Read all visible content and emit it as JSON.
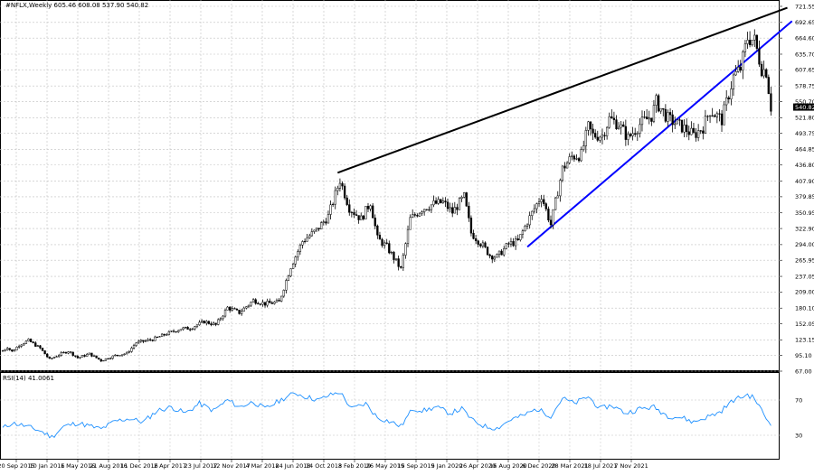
{
  "chart_data": [
    {
      "type": "candlestick",
      "title": "#NFLX,Weekly  605.46 608.08 537.90 540.82",
      "ylabel_ticks": [
        "721.55",
        "692.65",
        "664.60",
        "635.70",
        "607.65",
        "578.75",
        "550.70",
        "521.80",
        "493.75",
        "464.85",
        "436.80",
        "407.90",
        "379.85",
        "350.95",
        "322.90",
        "294.00",
        "265.95",
        "237.05",
        "209.00",
        "180.10",
        "152.05",
        "123.15",
        "95.10",
        "67.00"
      ],
      "ylim": [
        67.0,
        721.55
      ],
      "last_price": "540.82",
      "x_ticks": [
        "20 Sep 2015",
        "10 Jan 2016",
        "1 May 2016",
        "21 Aug 2016",
        "11 Dec 2016",
        "2 Apr 2017",
        "23 Jul 2017",
        "12 Nov 2017",
        "4 Mar 2018",
        "24 Jun 2018",
        "14 Oct 2018",
        "3 Feb 2019",
        "26 May 2019",
        "15 Sep 2019",
        "5 Jan 2020",
        "26 Apr 2020",
        "16 Aug 2020",
        "6 Dec 2020",
        "28 Mar 2021",
        "18 Jul 2021",
        "7 Nov 2021"
      ],
      "x_range": [
        "2015-09-20",
        "2022-01-09"
      ],
      "grid": true,
      "series": [
        {
          "name": "",
          "color": "#000000",
          "points": [
            [
              "2015-09-20",
              103.5
            ],
            [
              "2015-10-04",
              110.0
            ],
            [
              "2015-10-18",
              102.0
            ],
            [
              "2015-11-08",
              114.0
            ],
            [
              "2015-12-06",
              122.0
            ],
            [
              "2016-01-10",
              108.0
            ],
            [
              "2016-02-07",
              88.0
            ],
            [
              "2016-03-06",
              96.5
            ],
            [
              "2016-04-03",
              103.0
            ],
            [
              "2016-05-01",
              91.0
            ],
            [
              "2016-06-05",
              98.0
            ],
            [
              "2016-07-10",
              86.0
            ],
            [
              "2016-08-21",
              95.0
            ],
            [
              "2016-09-25",
              99.0
            ],
            [
              "2016-10-23",
              118.0
            ],
            [
              "2016-12-11",
              124.0
            ],
            [
              "2017-01-22",
              134.0
            ],
            [
              "2017-03-05",
              143.0
            ],
            [
              "2017-04-02",
              144.0
            ],
            [
              "2017-05-14",
              156.0
            ],
            [
              "2017-06-18",
              150.0
            ],
            [
              "2017-07-23",
              181.0
            ],
            [
              "2017-08-27",
              172.0
            ],
            [
              "2017-10-08",
              194.0
            ],
            [
              "2017-11-12",
              188.0
            ],
            [
              "2017-12-24",
              191.0
            ],
            [
              "2018-01-28",
              255.0
            ],
            [
              "2018-03-04",
              300.0
            ],
            [
              "2018-04-15",
              320.0
            ],
            [
              "2018-05-20",
              345.0
            ],
            [
              "2018-06-24",
              410.0
            ],
            [
              "2018-07-22",
              360.0
            ],
            [
              "2018-08-26",
              340.0
            ],
            [
              "2018-09-23",
              370.0
            ],
            [
              "2018-10-14",
              305.0
            ],
            [
              "2018-11-11",
              290.0
            ],
            [
              "2018-12-23",
              250.0
            ],
            [
              "2019-01-20",
              340.0
            ],
            [
              "2019-02-24",
              358.0
            ],
            [
              "2019-03-31",
              367.0
            ],
            [
              "2019-04-28",
              370.0
            ],
            [
              "2019-05-26",
              352.0
            ],
            [
              "2019-06-30",
              380.0
            ],
            [
              "2019-07-21",
              315.0
            ],
            [
              "2019-08-25",
              292.0
            ],
            [
              "2019-09-15",
              275.0
            ],
            [
              "2019-10-06",
              272.0
            ],
            [
              "2019-11-10",
              295.0
            ],
            [
              "2019-12-08",
              300.0
            ],
            [
              "2020-01-05",
              335.0
            ],
            [
              "2020-02-16",
              382.0
            ],
            [
              "2020-03-15",
              330.0
            ],
            [
              "2020-04-19",
              430.0
            ],
            [
              "2020-05-17",
              452.0
            ],
            [
              "2020-06-14",
              455.0
            ],
            [
              "2020-07-05",
              505.0
            ],
            [
              "2020-07-19",
              490.0
            ],
            [
              "2020-08-16",
              490.0
            ],
            [
              "2020-09-06",
              520.0
            ],
            [
              "2020-10-04",
              510.0
            ],
            [
              "2020-11-01",
              485.0
            ],
            [
              "2020-12-06",
              510.0
            ],
            [
              "2021-01-10",
              525.0
            ],
            [
              "2021-01-24",
              550.0
            ],
            [
              "2021-02-28",
              520.0
            ],
            [
              "2021-03-28",
              510.0
            ],
            [
              "2021-04-25",
              500.0
            ],
            [
              "2021-05-16",
              490.0
            ],
            [
              "2021-06-13",
              505.0
            ],
            [
              "2021-07-04",
              535.0
            ],
            [
              "2021-08-08",
              518.0
            ],
            [
              "2021-09-12",
              595.0
            ],
            [
              "2021-10-03",
              610.0
            ],
            [
              "2021-10-24",
              665.0
            ],
            [
              "2021-11-14",
              660.0
            ],
            [
              "2021-12-05",
              610.0
            ],
            [
              "2021-12-19",
              605.0
            ],
            [
              "2022-01-02",
              540.82
            ]
          ]
        }
      ],
      "trendlines": [
        {
          "color": "#000000",
          "from": [
            "2018-06-17",
            423.0
          ],
          "to": [
            "2022-02-20",
            719.0
          ]
        },
        {
          "color": "#0000ff",
          "from": [
            "2020-01-05",
            290.0
          ],
          "to": [
            "2022-03-06",
            695.0
          ]
        }
      ]
    },
    {
      "type": "line",
      "title": "RSI(14) 41.0061",
      "ylabel_ticks": [
        "70",
        "30"
      ],
      "ylim": [
        0,
        100
      ],
      "color": "#1e90ff",
      "series": [
        {
          "name": "",
          "points": [
            [
              "2015-09-20",
              38
            ],
            [
              "2015-10-18",
              44
            ],
            [
              "2015-11-22",
              41
            ],
            [
              "2016-01-10",
              35
            ],
            [
              "2016-02-14",
              28
            ],
            [
              "2016-03-20",
              40
            ],
            [
              "2016-05-01",
              44
            ],
            [
              "2016-07-10",
              37
            ],
            [
              "2016-08-21",
              46
            ],
            [
              "2016-10-02",
              49
            ],
            [
              "2016-11-13",
              45
            ],
            [
              "2016-12-25",
              58
            ],
            [
              "2017-02-05",
              62
            ],
            [
              "2017-03-19",
              55
            ],
            [
              "2017-04-30",
              66
            ],
            [
              "2017-06-11",
              58
            ],
            [
              "2017-07-23",
              70
            ],
            [
              "2017-08-27",
              62
            ],
            [
              "2017-10-08",
              68
            ],
            [
              "2017-11-12",
              60
            ],
            [
              "2018-01-07",
              72
            ],
            [
              "2018-02-11",
              78
            ],
            [
              "2018-03-11",
              74
            ],
            [
              "2018-04-22",
              70
            ],
            [
              "2018-05-20",
              75
            ],
            [
              "2018-06-24",
              79
            ],
            [
              "2018-07-29",
              60
            ],
            [
              "2018-09-09",
              66
            ],
            [
              "2018-10-14",
              50
            ],
            [
              "2018-11-25",
              45
            ],
            [
              "2018-12-23",
              40
            ],
            [
              "2019-01-27",
              60
            ],
            [
              "2019-03-03",
              58
            ],
            [
              "2019-04-07",
              62
            ],
            [
              "2019-05-19",
              55
            ],
            [
              "2019-06-23",
              60
            ],
            [
              "2019-07-28",
              46
            ],
            [
              "2019-09-01",
              40
            ],
            [
              "2019-10-06",
              38
            ],
            [
              "2019-11-17",
              48
            ],
            [
              "2019-12-22",
              52
            ],
            [
              "2020-02-02",
              60
            ],
            [
              "2020-03-15",
              52
            ],
            [
              "2020-04-19",
              72
            ],
            [
              "2020-05-24",
              66
            ],
            [
              "2020-07-05",
              74
            ],
            [
              "2020-08-09",
              60
            ],
            [
              "2020-09-13",
              64
            ],
            [
              "2020-10-25",
              55
            ],
            [
              "2020-12-06",
              60
            ],
            [
              "2021-01-17",
              62
            ],
            [
              "2021-02-28",
              52
            ],
            [
              "2021-04-11",
              50
            ],
            [
              "2021-05-16",
              45
            ],
            [
              "2021-06-20",
              50
            ],
            [
              "2021-08-01",
              56
            ],
            [
              "2021-09-12",
              70
            ],
            [
              "2021-10-24",
              76
            ],
            [
              "2021-11-14",
              72
            ],
            [
              "2021-12-05",
              58
            ],
            [
              "2022-01-02",
              41.0
            ]
          ]
        }
      ]
    }
  ]
}
